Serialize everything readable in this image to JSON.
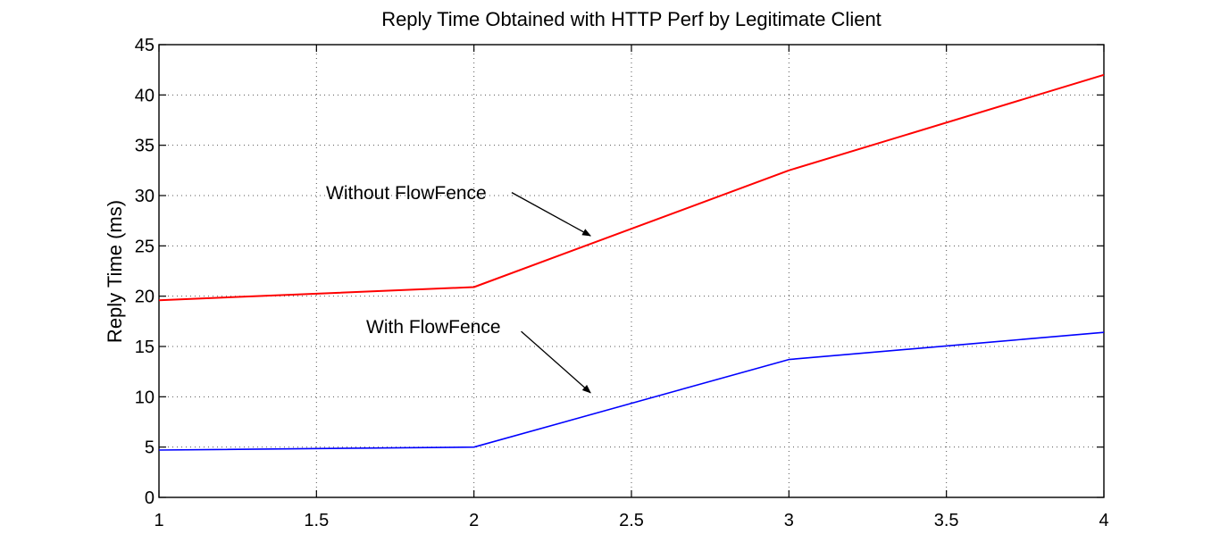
{
  "chart_data": {
    "type": "line",
    "title": "Reply Time Obtained with HTTP Perf by Legitimate Client",
    "xlabel": "",
    "ylabel": "Reply Time (ms)",
    "xlim": [
      1,
      4
    ],
    "ylim": [
      0,
      45
    ],
    "grid": true,
    "xticks": [
      1,
      1.5,
      2,
      2.5,
      3,
      3.5,
      4
    ],
    "xtick_labels": [
      "1",
      "1.5",
      "2",
      "2.5",
      "3",
      "3.5",
      "4"
    ],
    "yticks": [
      0,
      5,
      10,
      15,
      20,
      25,
      30,
      35,
      40,
      45
    ],
    "ytick_labels": [
      "0",
      "5",
      "10",
      "15",
      "20",
      "25",
      "30",
      "35",
      "40",
      "45"
    ],
    "series": [
      {
        "key": "without",
        "color": "#ff0000",
        "x": [
          1,
          2,
          3,
          4
        ],
        "y": [
          19.6,
          20.9,
          32.5,
          42.0
        ]
      },
      {
        "key": "with",
        "color": "#0000ff",
        "x": [
          1,
          2,
          3,
          4
        ],
        "y": [
          4.7,
          5.0,
          13.7,
          16.4
        ]
      }
    ],
    "annotations": [
      {
        "text": "Without FlowFence",
        "series": "without",
        "arrow_from": [
          2.12,
          30.3
        ],
        "arrow_to": [
          2.37,
          26.0
        ]
      },
      {
        "text": "With FlowFence",
        "series": "with",
        "arrow_from": [
          2.15,
          16.5
        ],
        "arrow_to": [
          2.37,
          10.4
        ]
      }
    ]
  }
}
